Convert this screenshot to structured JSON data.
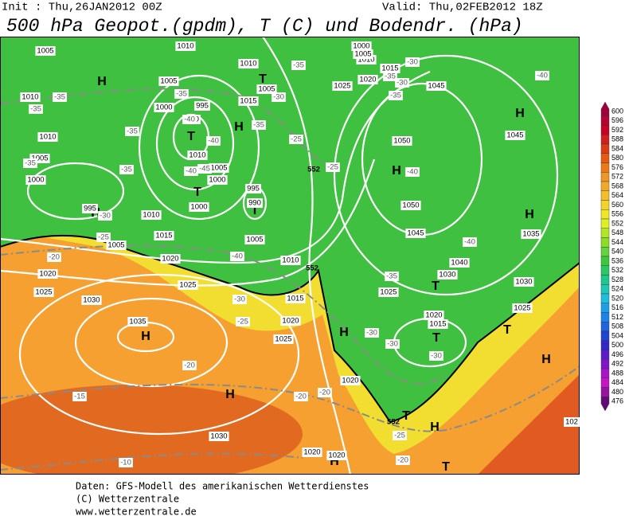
{
  "header": {
    "init": "Init : Thu,26JAN2012 00Z",
    "valid": "Valid: Thu,02FEB2012 18Z",
    "title": "500 hPa Geopot.(gpdm), T (C) und Bodendr. (hPa)"
  },
  "colorbar": {
    "levels": [
      600,
      596,
      592,
      588,
      584,
      580,
      576,
      572,
      568,
      564,
      560,
      556,
      552,
      548,
      544,
      540,
      536,
      532,
      528,
      524,
      520,
      516,
      512,
      508,
      504,
      500,
      496,
      492,
      488,
      484,
      480,
      476
    ],
    "colors": [
      "#a0003c",
      "#b40032",
      "#c80028",
      "#d21e1e",
      "#dc3c14",
      "#e65a14",
      "#f07814",
      "#f09628",
      "#f0aa28",
      "#f5be28",
      "#f5d228",
      "#f0e628",
      "#dcf028",
      "#b4e628",
      "#8cdc28",
      "#64d23c",
      "#3cc83c",
      "#28c864",
      "#1ec88c",
      "#1ec8b4",
      "#1ebedc",
      "#1ea0e6",
      "#1e82e6",
      "#1e64dc",
      "#1e46d2",
      "#3228c8",
      "#5a1ec8",
      "#8214c8",
      "#aa14c8",
      "#c814c8",
      "#9614a0",
      "#640a78"
    ]
  },
  "map": {
    "markers": [
      "H",
      "T",
      "H",
      "T",
      "T",
      "H",
      "H",
      "H",
      "H",
      "H",
      "H",
      "H",
      "T",
      "T",
      "H",
      "H",
      "T",
      "H",
      "T",
      "T",
      "T"
    ],
    "isobars": [
      "1005",
      "1010",
      "1010",
      "1005",
      "1000",
      "995",
      "1010",
      "1015",
      "1005",
      "1020",
      "1020",
      "1025",
      "1025",
      "1030",
      "1035",
      "1030",
      "1005",
      "1000",
      "995",
      "990",
      "1010",
      "1005",
      "1000",
      "1000",
      "995",
      "990",
      "1005",
      "1010",
      "1015",
      "1020",
      "1025",
      "1020",
      "1025",
      "1020",
      "1010",
      "1015",
      "1045",
      "1050",
      "1045",
      "1050",
      "1045",
      "1040",
      "1030",
      "1035",
      "1030",
      "1025",
      "1025",
      "1020",
      "1015",
      "102",
      "1020",
      "1020",
      "1010",
      "1015",
      "1005",
      "1010",
      "1000",
      "1005"
    ],
    "isotherms": [
      "-35",
      "-35",
      "-35",
      "-35",
      "-35",
      "-40",
      "-45",
      "-40",
      "-40",
      "-35",
      "-35",
      "-30",
      "-25",
      "-25",
      "-30",
      "-35",
      "-30",
      "-35",
      "-40",
      "-40",
      "-40",
      "-25",
      "-20",
      "-40",
      "-30",
      "-25",
      "-35",
      "-30",
      "-30",
      "-30",
      "-20",
      "-15",
      "-10",
      "-20",
      "-20",
      "-20",
      "-25",
      "-30",
      "-35"
    ],
    "contour_labels": [
      "552",
      "552",
      "552"
    ]
  },
  "footer": [
    "Daten: GFS-Modell des amerikanischen Wetterdienstes",
    "(C) Wetterzentrale",
    "www.wetterzentrale.de"
  ]
}
